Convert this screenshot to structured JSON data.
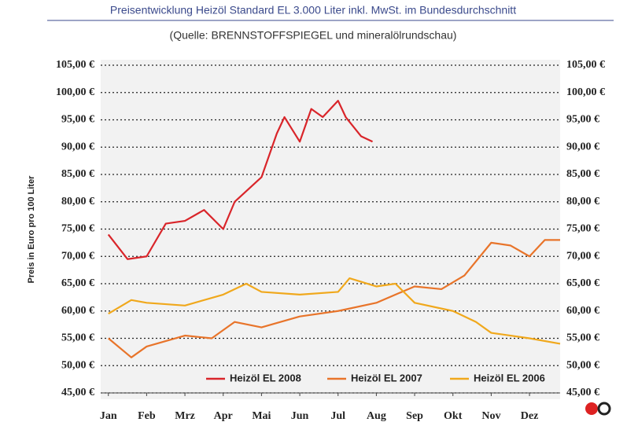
{
  "chart_data": {
    "type": "line",
    "title": "Preisentwicklung Heizöl Standard EL 3.000 Liter inkl. MwSt. im Bundesdurchschnitt",
    "subtitle": "(Quelle: BRENNSTOFFSPIEGEL und mineralölrundschau)",
    "y_label": "Preis in Euro pro 100 Liter",
    "xlim": [
      -0.2,
      11.8
    ],
    "xticks": [
      {
        "value": 0,
        "label": "Jan"
      },
      {
        "value": 1,
        "label": "Feb"
      },
      {
        "value": 2,
        "label": "Mrz"
      },
      {
        "value": 3,
        "label": "Apr"
      },
      {
        "value": 4,
        "label": "Mai"
      },
      {
        "value": 5,
        "label": "Jun"
      },
      {
        "value": 6,
        "label": "Jul"
      },
      {
        "value": 7,
        "label": "Aug"
      },
      {
        "value": 8,
        "label": "Sep"
      },
      {
        "value": 9,
        "label": "Okt"
      },
      {
        "value": 10,
        "label": "Nov"
      },
      {
        "value": 11,
        "label": "Dez"
      }
    ],
    "ylim": [
      45,
      105
    ],
    "yticks": [
      {
        "value": 45,
        "label": "45,00 €"
      },
      {
        "value": 50,
        "label": "50,00 €"
      },
      {
        "value": 55,
        "label": "55,00 €"
      },
      {
        "value": 60,
        "label": "60,00 €"
      },
      {
        "value": 65,
        "label": "65,00 €"
      },
      {
        "value": 70,
        "label": "70,00 €"
      },
      {
        "value": 75,
        "label": "75,00 €"
      },
      {
        "value": 80,
        "label": "80,00 €"
      },
      {
        "value": 85,
        "label": "85,00 €"
      },
      {
        "value": 90,
        "label": "90,00 €"
      },
      {
        "value": 95,
        "label": "95,00 €"
      },
      {
        "value": 100,
        "label": "100,00 €"
      },
      {
        "value": 105,
        "label": "105,00 €"
      }
    ],
    "y2lim": [
      45,
      105
    ],
    "y2ticks": [
      {
        "value": 45,
        "label": "45,00 €"
      },
      {
        "value": 50,
        "label": "50,00 €"
      },
      {
        "value": 55,
        "label": "55,00 €"
      },
      {
        "value": 60,
        "label": "60,00 €"
      },
      {
        "value": 65,
        "label": "65,00 €"
      },
      {
        "value": 70,
        "label": "70,00 €"
      },
      {
        "value": 75,
        "label": "75,00 €"
      },
      {
        "value": 80,
        "label": "80,00 €"
      },
      {
        "value": 85,
        "label": "85,00 €"
      },
      {
        "value": 90,
        "label": "90,00 €"
      },
      {
        "value": 95,
        "label": "95,00 €"
      },
      {
        "value": 100,
        "label": "100,00 €"
      },
      {
        "value": 105,
        "label": "105,00 €"
      }
    ],
    "grid": true,
    "legend": "bottom",
    "series": [
      {
        "name": "Heizöl EL 2008",
        "color": "#d9252a",
        "x": [
          0,
          0.5,
          1,
          1.5,
          2,
          2.5,
          3,
          3.3,
          4,
          4.4,
          4.6,
          5,
          5.3,
          5.6,
          6,
          6.2,
          6.6,
          6.9
        ],
        "values": [
          74,
          69.5,
          70,
          76,
          76.5,
          78.5,
          75,
          80,
          84.5,
          92.5,
          95.5,
          91,
          97,
          95.5,
          98.5,
          95.5,
          92,
          91
        ]
      },
      {
        "name": "Heizöl EL 2007",
        "color": "#e8742a",
        "x": [
          0,
          0.6,
          1,
          2,
          2.7,
          3.3,
          4,
          5,
          6,
          7,
          8,
          8.7,
          9.3,
          10,
          10.5,
          11,
          11.4,
          11.8
        ],
        "values": [
          55,
          51.5,
          53.5,
          55.5,
          55,
          58,
          57,
          59,
          60,
          61.5,
          64.5,
          64,
          66.5,
          72.5,
          72,
          70,
          73,
          73
        ]
      },
      {
        "name": "Heizöl EL 2006",
        "color": "#f0a81c",
        "x": [
          0,
          0.6,
          1,
          2,
          3,
          3.6,
          4,
          5,
          6,
          6.3,
          7,
          7.5,
          8,
          9,
          9.6,
          10,
          11,
          11.8
        ],
        "values": [
          59.5,
          62,
          61.5,
          61,
          63,
          65,
          63.5,
          63,
          63.5,
          66,
          64.5,
          65,
          61.5,
          60,
          58,
          56,
          55,
          54
        ]
      }
    ]
  }
}
